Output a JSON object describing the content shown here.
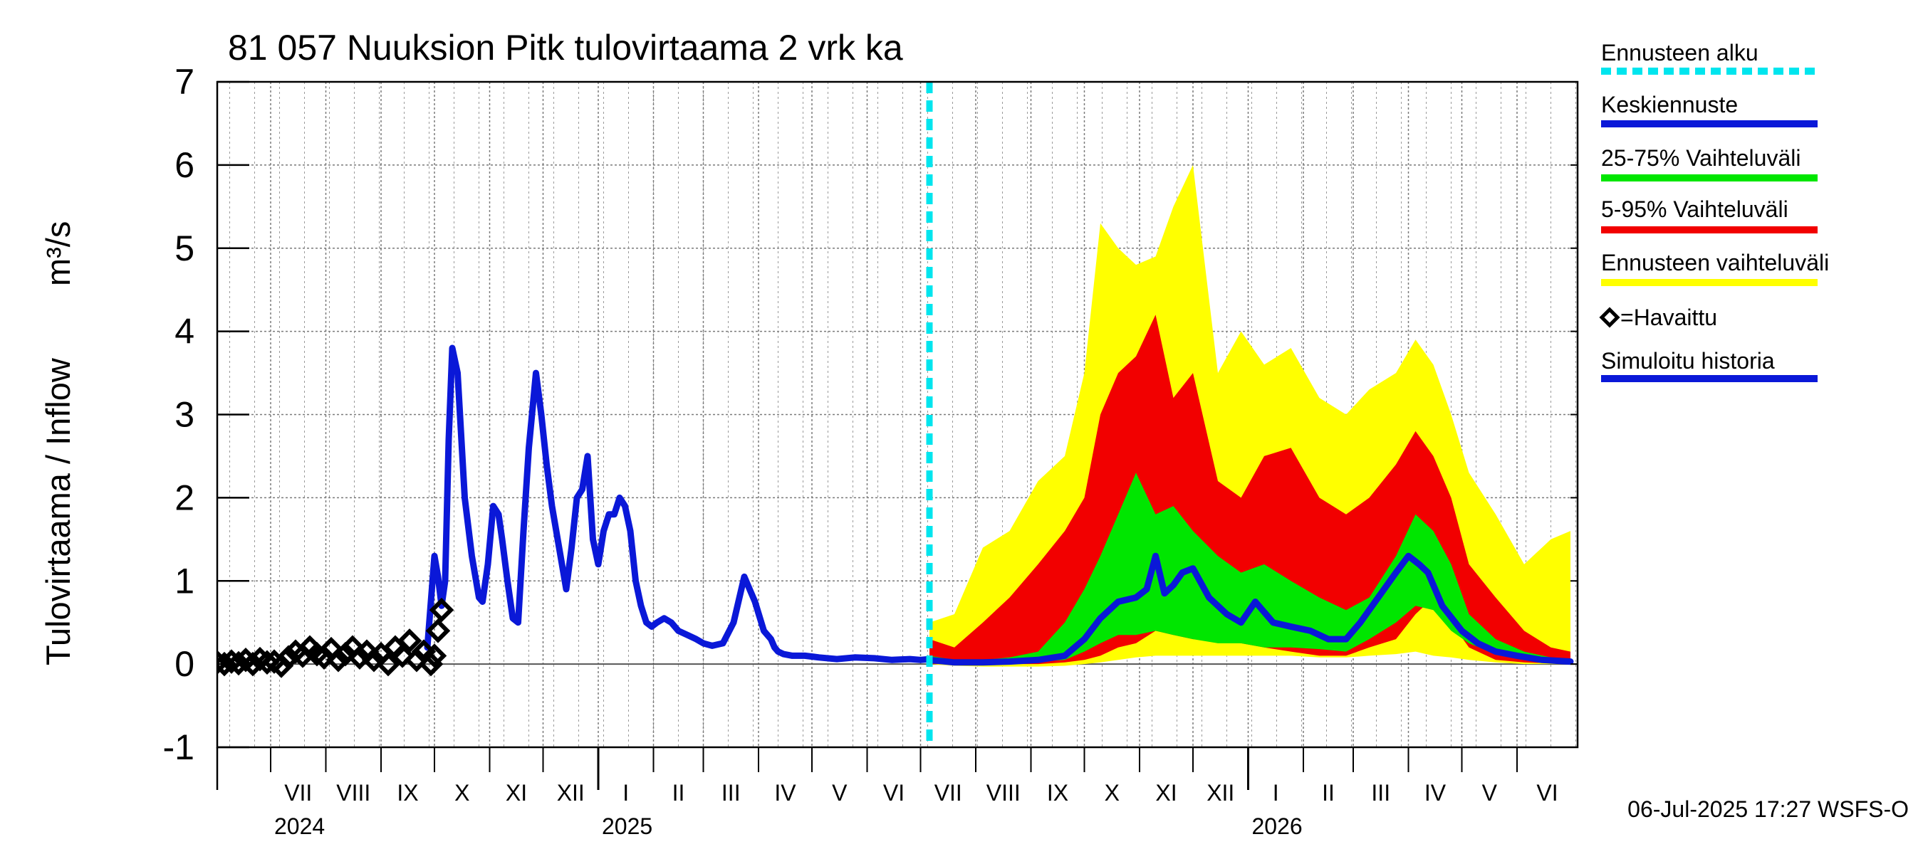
{
  "chart_data": {
    "type": "area",
    "title": "81 057 Nuuksion Pitk tulovirtaama 2 vrk ka",
    "ylabel": "Tulovirtaama / Inflow",
    "yunit": "m³/s",
    "ylim": [
      -1,
      7
    ],
    "yticks": [
      "-1",
      "0",
      "1",
      "2",
      "3",
      "4",
      "5",
      "6",
      "7"
    ],
    "xlim": [
      "2024-06-01",
      "2026-07-05"
    ],
    "grid": true,
    "month_labels": [
      {
        "label": "VII",
        "date": "2024-07-01"
      },
      {
        "label": "VIII",
        "date": "2024-08-01"
      },
      {
        "label": "IX",
        "date": "2024-09-01"
      },
      {
        "label": "X",
        "date": "2024-10-01"
      },
      {
        "label": "XI",
        "date": "2024-11-01"
      },
      {
        "label": "XII",
        "date": "2024-12-01"
      },
      {
        "label": "I",
        "date": "2025-01-01"
      },
      {
        "label": "II",
        "date": "2025-02-01"
      },
      {
        "label": "III",
        "date": "2025-03-01"
      },
      {
        "label": "IV",
        "date": "2025-04-01"
      },
      {
        "label": "V",
        "date": "2025-05-01"
      },
      {
        "label": "VI",
        "date": "2025-06-01"
      },
      {
        "label": "VII",
        "date": "2025-07-01"
      },
      {
        "label": "VIII",
        "date": "2025-08-01"
      },
      {
        "label": "IX",
        "date": "2025-09-01"
      },
      {
        "label": "X",
        "date": "2025-10-01"
      },
      {
        "label": "XI",
        "date": "2025-11-01"
      },
      {
        "label": "XII",
        "date": "2025-12-01"
      },
      {
        "label": "I",
        "date": "2026-01-01"
      },
      {
        "label": "II",
        "date": "2026-02-01"
      },
      {
        "label": "III",
        "date": "2026-03-01"
      },
      {
        "label": "IV",
        "date": "2026-04-01"
      },
      {
        "label": "V",
        "date": "2026-05-01"
      },
      {
        "label": "VI",
        "date": "2026-06-01"
      }
    ],
    "year_labels": [
      {
        "label": "2024",
        "date": "2024-07-01"
      },
      {
        "label": "2025",
        "date": "2025-01-01"
      },
      {
        "label": "2026",
        "date": "2026-01-01"
      }
    ],
    "forecast_start": "2025-07-06",
    "legend_position": "right",
    "legend": [
      {
        "label": "Ennusteen alku",
        "color": "#00e5ee",
        "style": "dashed"
      },
      {
        "label": "Keskiennuste",
        "color": "#0a18d8",
        "style": "line"
      },
      {
        "label": "25-75% Vaihteluväli",
        "color": "#00e600",
        "style": "line"
      },
      {
        "label": "5-95% Vaihteluväli",
        "color": "#f20000",
        "style": "line"
      },
      {
        "label": "Ennusteen vaihteluväli",
        "color": "#ffff00",
        "style": "line"
      },
      {
        "label": "=Havaittu",
        "color": "#000000",
        "style": "diamond"
      },
      {
        "label": "Simuloitu historia",
        "color": "#0a18d8",
        "style": "line"
      }
    ],
    "footer": "06-Jul-2025 17:27 WSFS-O",
    "series": [
      {
        "name": "Havaittu",
        "kind": "observed",
        "color": "#000000",
        "x": [
          "2024-06-01",
          "2024-06-05",
          "2024-06-09",
          "2024-06-13",
          "2024-06-17",
          "2024-06-21",
          "2024-06-25",
          "2024-06-29",
          "2024-07-03",
          "2024-07-07",
          "2024-07-11",
          "2024-07-15",
          "2024-07-19",
          "2024-07-23",
          "2024-07-27",
          "2024-07-31",
          "2024-08-04",
          "2024-08-08",
          "2024-08-12",
          "2024-08-16",
          "2024-08-20",
          "2024-08-24",
          "2024-08-28",
          "2024-09-01",
          "2024-09-05",
          "2024-09-09",
          "2024-09-13",
          "2024-09-17",
          "2024-09-21",
          "2024-09-25",
          "2024-09-29",
          "2024-10-01",
          "2024-10-03",
          "2024-10-05"
        ],
        "y": [
          0.02,
          0.0,
          0.03,
          0.01,
          0.05,
          0.0,
          0.06,
          0.02,
          0.03,
          -0.02,
          0.08,
          0.15,
          0.1,
          0.2,
          0.12,
          0.08,
          0.18,
          0.05,
          0.12,
          0.2,
          0.08,
          0.15,
          0.05,
          0.12,
          0.0,
          0.2,
          0.1,
          0.28,
          0.05,
          0.15,
          0.0,
          0.1,
          0.4,
          0.65
        ]
      },
      {
        "name": "Simuloitu historia",
        "kind": "simulated",
        "color": "#0a18d8",
        "x": [
          "2024-09-27",
          "2024-10-01",
          "2024-10-03",
          "2024-10-05",
          "2024-10-07",
          "2024-10-09",
          "2024-10-11",
          "2024-10-14",
          "2024-10-18",
          "2024-10-22",
          "2024-10-26",
          "2024-10-28",
          "2024-10-31",
          "2024-11-03",
          "2024-11-06",
          "2024-11-08",
          "2024-11-11",
          "2024-11-14",
          "2024-11-17",
          "2024-11-20",
          "2024-11-23",
          "2024-11-27",
          "2024-11-30",
          "2024-12-03",
          "2024-12-06",
          "2024-12-10",
          "2024-12-14",
          "2024-12-17",
          "2024-12-20",
          "2024-12-23",
          "2024-12-26",
          "2024-12-29",
          "2025-01-01",
          "2025-01-04",
          "2025-01-07",
          "2025-01-10",
          "2025-01-13",
          "2025-01-16",
          "2025-01-19",
          "2025-01-22",
          "2025-01-25",
          "2025-01-28",
          "2025-01-31",
          "2025-02-03",
          "2025-02-07",
          "2025-02-11",
          "2025-02-15",
          "2025-02-20",
          "2025-02-25",
          "2025-03-01",
          "2025-03-06",
          "2025-03-12",
          "2025-03-18",
          "2025-03-24",
          "2025-03-30",
          "2025-04-04",
          "2025-04-08",
          "2025-04-10",
          "2025-04-12",
          "2025-04-15",
          "2025-04-20",
          "2025-04-27",
          "2025-05-05",
          "2025-05-15",
          "2025-05-25",
          "2025-06-05",
          "2025-06-15",
          "2025-06-25",
          "2025-07-01",
          "2025-07-06"
        ],
        "y": [
          0.2,
          1.3,
          1.05,
          0.7,
          1.0,
          2.7,
          3.8,
          3.5,
          2.0,
          1.3,
          0.8,
          0.75,
          1.2,
          1.9,
          1.8,
          1.5,
          1.0,
          0.55,
          0.5,
          1.6,
          2.6,
          3.5,
          3.0,
          2.4,
          1.9,
          1.4,
          0.9,
          1.4,
          2.0,
          2.1,
          2.5,
          1.5,
          1.2,
          1.6,
          1.8,
          1.8,
          2.0,
          1.9,
          1.6,
          1.0,
          0.7,
          0.5,
          0.45,
          0.5,
          0.55,
          0.5,
          0.4,
          0.35,
          0.3,
          0.25,
          0.22,
          0.25,
          0.5,
          1.05,
          0.75,
          0.4,
          0.3,
          0.2,
          0.15,
          0.12,
          0.1,
          0.1,
          0.08,
          0.06,
          0.08,
          0.07,
          0.05,
          0.06,
          0.05,
          0.06
        ]
      },
      {
        "name": "Keskiennuste",
        "kind": "median",
        "color": "#0a18d8",
        "x": [
          "2025-07-06",
          "2025-07-20",
          "2025-08-05",
          "2025-08-20",
          "2025-09-05",
          "2025-09-20",
          "2025-10-01",
          "2025-10-10",
          "2025-10-20",
          "2025-10-30",
          "2025-11-05",
          "2025-11-10",
          "2025-11-15",
          "2025-11-20",
          "2025-11-25",
          "2025-12-01",
          "2025-12-10",
          "2025-12-20",
          "2025-12-28",
          "2026-01-05",
          "2026-01-15",
          "2026-01-25",
          "2026-02-05",
          "2026-02-15",
          "2026-02-25",
          "2026-03-05",
          "2026-03-15",
          "2026-03-25",
          "2026-04-01",
          "2026-04-07",
          "2026-04-12",
          "2026-04-20",
          "2026-05-01",
          "2026-05-10",
          "2026-05-20",
          "2026-06-01",
          "2026-06-15",
          "2026-07-01"
        ],
        "y": [
          0.05,
          0.02,
          0.02,
          0.03,
          0.05,
          0.1,
          0.3,
          0.55,
          0.75,
          0.8,
          0.9,
          1.3,
          0.85,
          0.95,
          1.1,
          1.15,
          0.8,
          0.6,
          0.5,
          0.75,
          0.5,
          0.45,
          0.4,
          0.3,
          0.3,
          0.5,
          0.8,
          1.1,
          1.3,
          1.2,
          1.1,
          0.7,
          0.4,
          0.25,
          0.15,
          0.1,
          0.05,
          0.03
        ]
      },
      {
        "name": "25-75% Vaihteluväli",
        "kind": "band",
        "color": "#00e600",
        "x": [
          "2025-07-06",
          "2025-07-20",
          "2025-08-05",
          "2025-08-20",
          "2025-09-05",
          "2025-09-20",
          "2025-10-01",
          "2025-10-10",
          "2025-10-20",
          "2025-10-30",
          "2025-11-10",
          "2025-11-20",
          "2025-12-01",
          "2025-12-15",
          "2025-12-28",
          "2026-01-10",
          "2026-01-25",
          "2026-02-10",
          "2026-02-25",
          "2026-03-10",
          "2026-03-25",
          "2026-04-05",
          "2026-04-15",
          "2026-04-25",
          "2026-05-05",
          "2026-05-20",
          "2026-06-05",
          "2026-06-20",
          "2026-07-01"
        ],
        "lower": [
          0.03,
          0.02,
          0.01,
          0.02,
          0.03,
          0.05,
          0.15,
          0.25,
          0.35,
          0.35,
          0.4,
          0.35,
          0.3,
          0.25,
          0.25,
          0.2,
          0.2,
          0.18,
          0.15,
          0.3,
          0.5,
          0.7,
          0.65,
          0.4,
          0.25,
          0.12,
          0.06,
          0.03,
          0.02
        ],
        "upper": [
          0.1,
          0.05,
          0.05,
          0.08,
          0.15,
          0.5,
          0.9,
          1.3,
          1.8,
          2.3,
          1.8,
          1.9,
          1.6,
          1.3,
          1.1,
          1.2,
          1.0,
          0.8,
          0.65,
          0.8,
          1.3,
          1.8,
          1.6,
          1.2,
          0.6,
          0.3,
          0.15,
          0.08,
          0.05
        ]
      },
      {
        "name": "5-95% Vaihteluväli",
        "kind": "band",
        "color": "#f20000",
        "x": [
          "2025-07-06",
          "2025-07-20",
          "2025-08-05",
          "2025-08-20",
          "2025-09-05",
          "2025-09-20",
          "2025-10-01",
          "2025-10-10",
          "2025-10-20",
          "2025-10-30",
          "2025-11-10",
          "2025-11-20",
          "2025-12-01",
          "2025-12-15",
          "2025-12-28",
          "2026-01-10",
          "2026-01-25",
          "2026-02-10",
          "2026-02-25",
          "2026-03-10",
          "2026-03-25",
          "2026-04-05",
          "2026-04-15",
          "2026-04-25",
          "2026-05-05",
          "2026-05-20",
          "2026-06-05",
          "2026-06-20",
          "2026-07-01"
        ],
        "lower": [
          0.0,
          0.0,
          0.0,
          0.0,
          0.0,
          0.02,
          0.05,
          0.1,
          0.2,
          0.25,
          0.4,
          0.35,
          0.3,
          0.3,
          0.25,
          0.2,
          0.15,
          0.1,
          0.1,
          0.2,
          0.3,
          0.6,
          0.8,
          0.5,
          0.2,
          0.05,
          0.02,
          0.01,
          0.0
        ],
        "upper": [
          0.3,
          0.2,
          0.5,
          0.8,
          1.2,
          1.6,
          2.0,
          3.0,
          3.5,
          3.7,
          4.2,
          3.2,
          3.5,
          2.2,
          2.0,
          2.5,
          2.6,
          2.0,
          1.8,
          2.0,
          2.4,
          2.8,
          2.5,
          2.0,
          1.2,
          0.8,
          0.4,
          0.2,
          0.15
        ]
      },
      {
        "name": "Ennusteen vaihteluväli",
        "kind": "band",
        "color": "#ffff00",
        "x": [
          "2025-07-06",
          "2025-07-20",
          "2025-08-05",
          "2025-08-20",
          "2025-09-05",
          "2025-09-20",
          "2025-10-01",
          "2025-10-10",
          "2025-10-20",
          "2025-10-30",
          "2025-11-10",
          "2025-11-20",
          "2025-12-01",
          "2025-12-15",
          "2025-12-28",
          "2026-01-10",
          "2026-01-25",
          "2026-02-10",
          "2026-02-25",
          "2026-03-10",
          "2026-03-25",
          "2026-04-05",
          "2026-04-15",
          "2026-04-25",
          "2026-05-05",
          "2026-05-20",
          "2026-06-05",
          "2026-06-20",
          "2026-07-01"
        ],
        "lower": [
          0.0,
          -0.02,
          -0.03,
          -0.03,
          -0.03,
          -0.02,
          0.0,
          0.02,
          0.05,
          0.08,
          0.1,
          0.1,
          0.1,
          0.1,
          0.1,
          0.1,
          0.1,
          0.08,
          0.08,
          0.1,
          0.12,
          0.15,
          0.1,
          0.08,
          0.05,
          0.02,
          0.0,
          0.0,
          0.0
        ],
        "upper": [
          0.5,
          0.6,
          1.4,
          1.6,
          2.2,
          2.5,
          3.5,
          5.3,
          5.0,
          4.8,
          4.9,
          5.5,
          6.0,
          3.5,
          4.0,
          3.6,
          3.8,
          3.2,
          3.0,
          3.3,
          3.5,
          3.9,
          3.6,
          3.0,
          2.3,
          1.8,
          1.2,
          1.5,
          1.6
        ]
      }
    ]
  }
}
